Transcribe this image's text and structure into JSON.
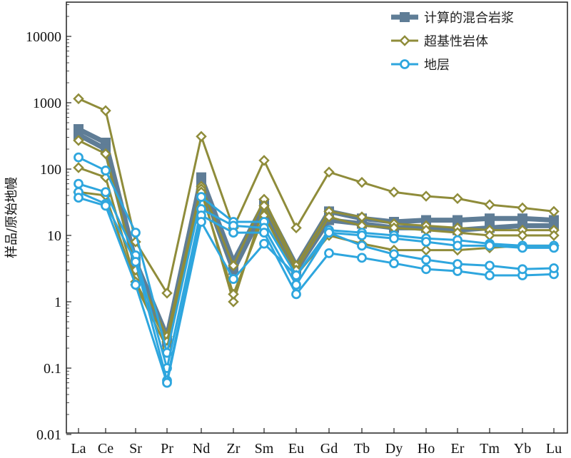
{
  "chart_data": {
    "type": "line",
    "title": "",
    "xlabel": "",
    "ylabel": "样品/原始地幔",
    "yscale": "log",
    "ylim": [
      0.01,
      30000
    ],
    "yticks": [
      0.01,
      0.1,
      1,
      10,
      100,
      1000,
      10000
    ],
    "ytick_labels": [
      "0.01",
      "0.1",
      "1",
      "10",
      "100",
      "1000",
      "10000"
    ],
    "categories": [
      "La",
      "Ce",
      "Sr",
      "Pr",
      "Nd",
      "Zr",
      "Sm",
      "Eu",
      "Gd",
      "Tb",
      "Dy",
      "Ho",
      "Er",
      "Tm",
      "Yb",
      "Lu"
    ],
    "legend_position": "top-right",
    "groups": [
      {
        "name": "计算的混合岩浆",
        "marker": "square",
        "color": "#5f7d96",
        "series": [
          [
            400,
            250,
            4,
            0.3,
            75,
            4,
            30,
            3.5,
            23,
            18,
            16,
            17,
            17,
            18,
            18,
            17
          ],
          [
            330,
            200,
            3.5,
            0.25,
            60,
            3,
            25,
            3,
            17,
            15,
            13,
            13,
            12,
            13,
            14,
            14
          ]
        ]
      },
      {
        "name": "超基性岩体",
        "marker": "diamond",
        "color": "#8f8c3a",
        "series": [
          [
            1150,
            760,
            8,
            1.35,
            310,
            13,
            135,
            13,
            90,
            63,
            45,
            39,
            36,
            29,
            26,
            23
          ],
          [
            270,
            170,
            3,
            0.3,
            55,
            3.5,
            35,
            3.5,
            23,
            19,
            15,
            14,
            13,
            12,
            12,
            12
          ],
          [
            105,
            75,
            2,
            0.25,
            50,
            1.0,
            28,
            3,
            19,
            14,
            13,
            12,
            11,
            10,
            10,
            10
          ],
          [
            45,
            40,
            1.8,
            0.2,
            45,
            1.3,
            20,
            2.5,
            10,
            7.5,
            6,
            6,
            6,
            6.5,
            7,
            7
          ]
        ]
      },
      {
        "name": "地层",
        "marker": "circle",
        "color": "#2ea6de",
        "series": [
          [
            150,
            95,
            11,
            0.17,
            38,
            16,
            16,
            2.5,
            12,
            11,
            10,
            9,
            8.5,
            7.5,
            7,
            7
          ],
          [
            60,
            45,
            5,
            0.1,
            25,
            14,
            13,
            1.8,
            11,
            10,
            9,
            8,
            7,
            7,
            6.5,
            6.5
          ],
          [
            45,
            30,
            4,
            0.065,
            20,
            11,
            11,
            1.3,
            5.4,
            4.6,
            3.8,
            3.1,
            2.9,
            2.5,
            2.5,
            2.6
          ],
          [
            37,
            28,
            1.8,
            0.06,
            16,
            2.2,
            7.5,
            2.5,
            11,
            7,
            5.2,
            4.3,
            3.7,
            3.5,
            3.1,
            3.2
          ]
        ]
      }
    ]
  }
}
